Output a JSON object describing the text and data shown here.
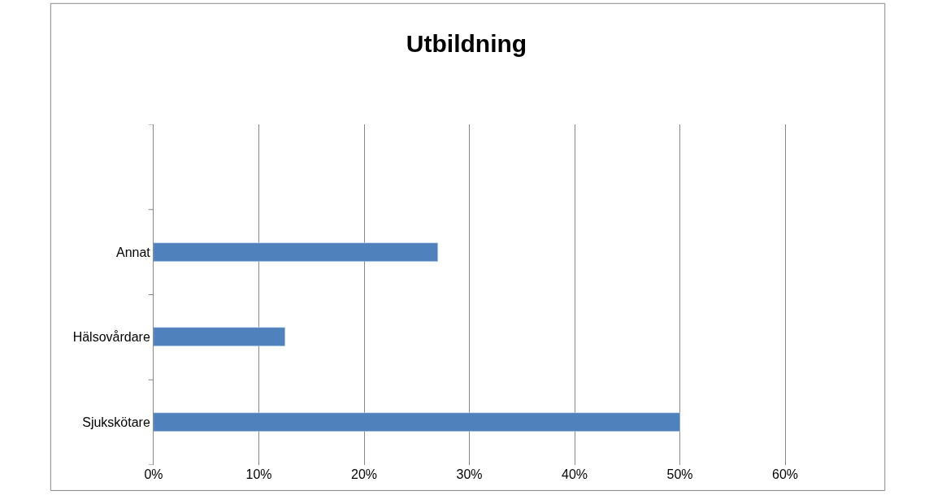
{
  "chart_data": {
    "type": "bar",
    "orientation": "horizontal",
    "title": "Utbildning",
    "categories": [
      null,
      "Annat",
      "Hälsovårdare",
      "Sjukskötare"
    ],
    "values": [
      null,
      27,
      12.5,
      50
    ],
    "color": "#4f81bd",
    "xlim": [
      0,
      60
    ],
    "xticks": [
      {
        "value": 0,
        "label": "0%"
      },
      {
        "value": 10,
        "label": "10%"
      },
      {
        "value": 20,
        "label": "20%"
      },
      {
        "value": 30,
        "label": "30%"
      },
      {
        "value": 40,
        "label": "40%"
      },
      {
        "value": 50,
        "label": "50%"
      },
      {
        "value": 60,
        "label": "60%"
      }
    ],
    "grid": "x"
  }
}
